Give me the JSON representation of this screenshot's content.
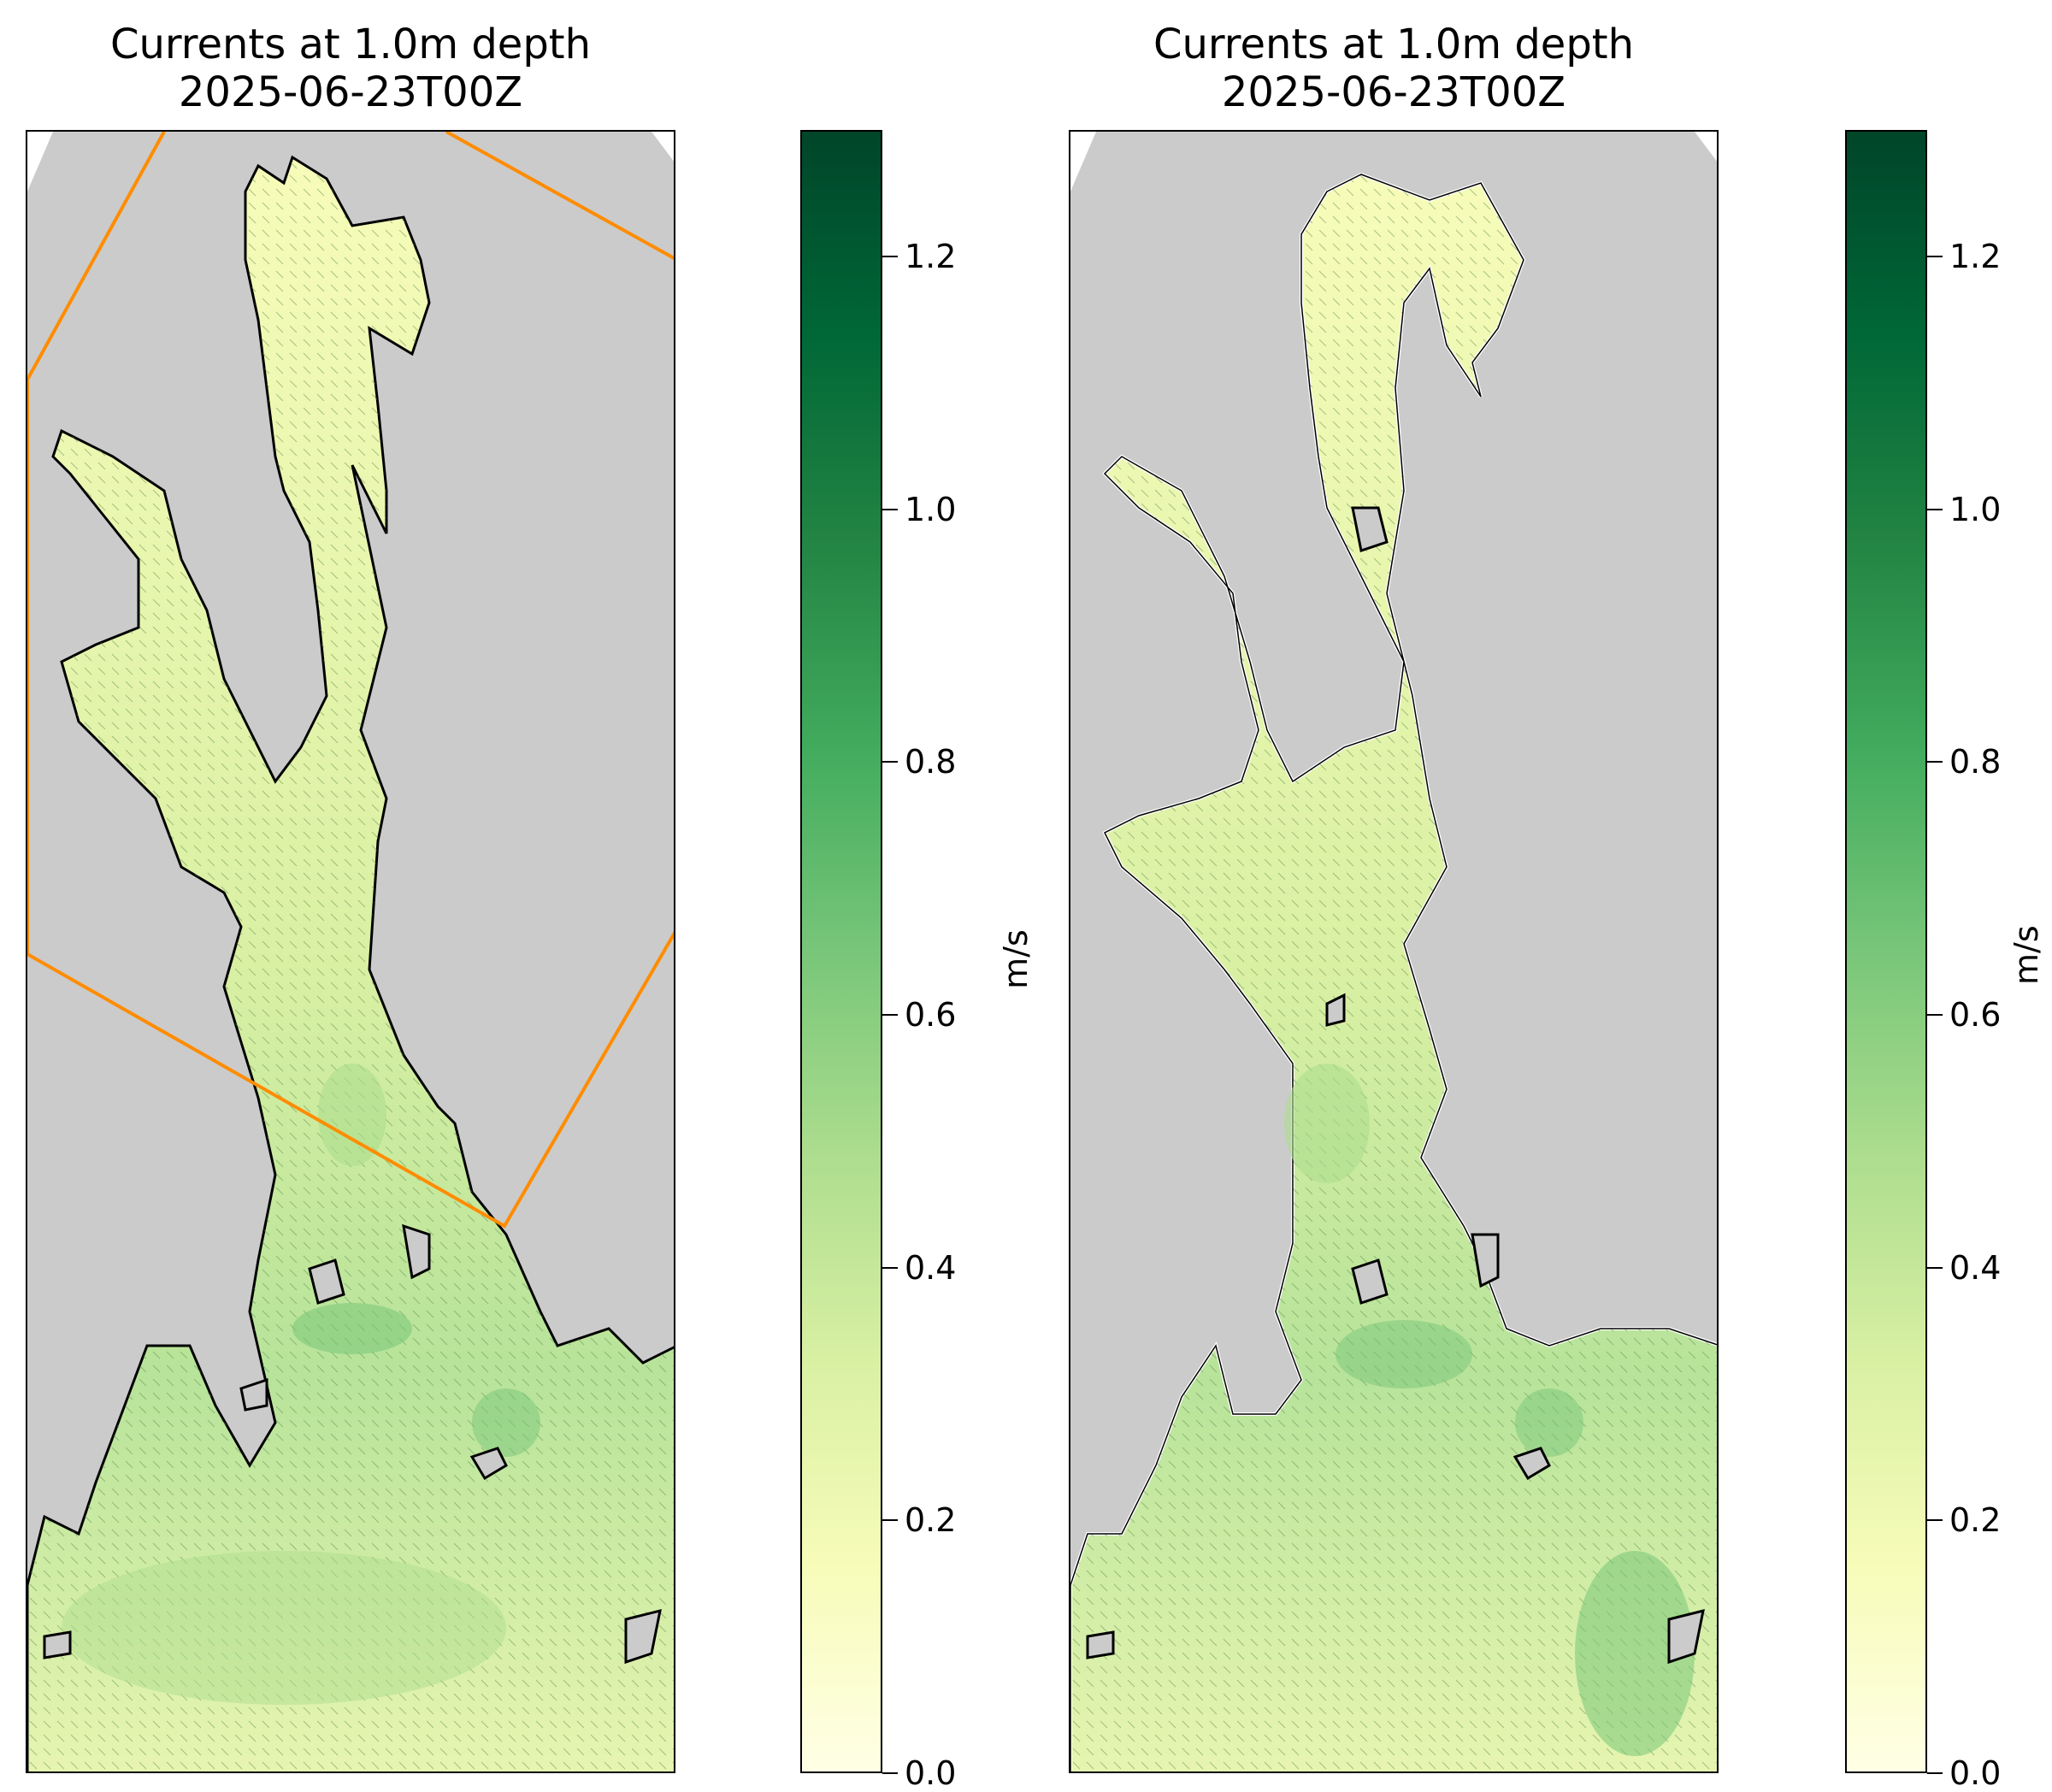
{
  "panels": [
    {
      "title_line1": "Currents at 1.0m depth",
      "title_line2": "2025-06-23T00Z",
      "has_subdomain_outline": true
    },
    {
      "title_line1": "Currents at 1.0m depth",
      "title_line2": "2025-06-23T00Z",
      "has_subdomain_outline": false
    }
  ],
  "colorbar": {
    "label": "m/s",
    "min": 0.0,
    "max": 1.3,
    "ticks": [
      "0.0",
      "0.2",
      "0.4",
      "0.6",
      "0.8",
      "1.0",
      "1.2"
    ],
    "tick_values": [
      0.0,
      0.2,
      0.4,
      0.6,
      0.8,
      1.0,
      1.2
    ],
    "colormap": [
      "#ffffe5",
      "#f7fcb9",
      "#d9f0a3",
      "#addd8e",
      "#78c679",
      "#41ab5d",
      "#238443",
      "#006837",
      "#004529"
    ]
  },
  "colors": {
    "land": "#cbcbcb",
    "subdomain_outline": "#ff8c00",
    "coastline_left": "#000000",
    "coastline_right": "#ffffff"
  }
}
